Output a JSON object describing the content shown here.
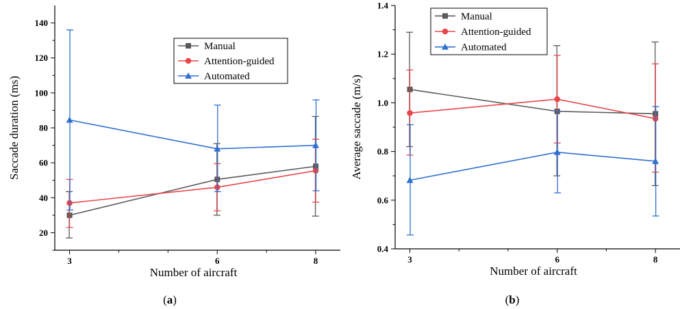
{
  "chart_data": [
    {
      "type": "line",
      "panel_label": "a",
      "xlabel": "Number of aircraft",
      "ylabel": "Saccade duration (ms)",
      "x": [
        3,
        6,
        8
      ],
      "xlim": [
        2.7,
        8.5
      ],
      "x_ticks": [
        3,
        6,
        8
      ],
      "ylim": [
        10,
        150
      ],
      "y_ticks": [
        20,
        40,
        60,
        80,
        100,
        120,
        140
      ],
      "y_tick_labels": [
        "20",
        "40",
        "60",
        "80",
        "100",
        "120",
        "140"
      ],
      "grid": false,
      "legend_position": "top-right",
      "series": [
        {
          "name": "Manual",
          "color": "#595959",
          "marker": "square",
          "values": [
            30.0,
            50.5,
            58.0
          ],
          "err_low": [
            17.0,
            30.0,
            29.5
          ],
          "err_high": [
            43.5,
            71.0,
            86.5
          ]
        },
        {
          "name": "Attention-guided",
          "color": "#e8464a",
          "marker": "circle",
          "values": [
            37.0,
            46.0,
            55.5
          ],
          "err_low": [
            23.0,
            32.5,
            37.5
          ],
          "err_high": [
            50.5,
            59.5,
            73.5
          ]
        },
        {
          "name": "Automated",
          "color": "#2f6fd0",
          "marker": "triangle",
          "values": [
            84.5,
            68.0,
            70.0
          ],
          "err_low": [
            33.0,
            43.5,
            44.0
          ],
          "err_high": [
            136.0,
            93.0,
            96.0
          ]
        }
      ]
    },
    {
      "type": "line",
      "panel_label": "b",
      "xlabel": "Number of aircraft",
      "ylabel": "Average saccade (m/s)",
      "x": [
        3,
        6,
        8
      ],
      "xlim": [
        2.7,
        8.5
      ],
      "x_ticks": [
        3,
        6,
        8
      ],
      "ylim": [
        0.4,
        1.4
      ],
      "y_ticks": [
        0.4,
        0.6,
        0.8,
        1.0,
        1.2,
        1.4
      ],
      "y_tick_labels": [
        "0.4",
        "0.6",
        "0.8",
        "1.0",
        "1.2",
        "1.4"
      ],
      "grid": false,
      "legend_position": "top-left",
      "series": [
        {
          "name": "Manual",
          "color": "#595959",
          "marker": "square",
          "values": [
            1.055,
            0.965,
            0.955
          ],
          "err_low": [
            0.82,
            0.7,
            0.66
          ],
          "err_high": [
            1.29,
            1.235,
            1.25
          ]
        },
        {
          "name": "Attention-guided",
          "color": "#e8464a",
          "marker": "circle",
          "values": [
            0.958,
            1.015,
            0.935
          ],
          "err_low": [
            0.785,
            0.835,
            0.715
          ],
          "err_high": [
            1.135,
            1.195,
            1.16
          ]
        },
        {
          "name": "Automated",
          "color": "#2f6fd0",
          "marker": "triangle",
          "values": [
            0.682,
            0.797,
            0.76
          ],
          "err_low": [
            0.457,
            0.63,
            0.535
          ],
          "err_high": [
            0.91,
            0.965,
            0.985
          ]
        }
      ]
    }
  ]
}
